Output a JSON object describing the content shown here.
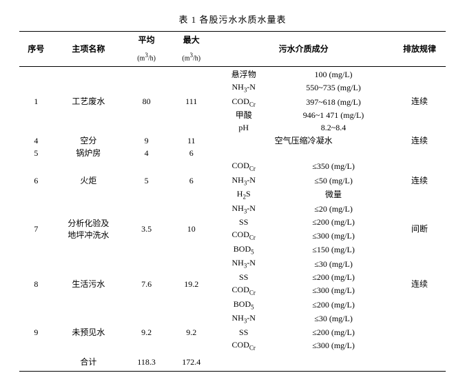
{
  "title": "表 1  各股污水水质水量表",
  "columns": {
    "seq": "序号",
    "name": "主项名称",
    "avg": "平均",
    "avg_unit": "(m³/h)",
    "max": "最大",
    "max_unit": "(m³/h)",
    "component": "污水介质成分",
    "rule": "排放规律"
  },
  "rows": [
    {
      "seq": "1",
      "name": "工艺废水",
      "avg": "80",
      "max": "111",
      "rule": "连续",
      "sub": [
        {
          "p": "悬浮物",
          "v": "100 (mg/L)"
        },
        {
          "p": "NH₃-N",
          "v": "550~735 (mg/L)"
        },
        {
          "p": "CODCr",
          "v": "397~618 (mg/L)"
        },
        {
          "p": "甲酸",
          "v": "946~1 471 (mg/L)"
        },
        {
          "p": "pH",
          "v": "8.2~8.4"
        }
      ]
    },
    {
      "seq": "4",
      "name": "空分",
      "avg": "9",
      "max": "11",
      "rule": "连续",
      "sub": [
        {
          "p": "",
          "v": "空气压缩冷凝水"
        }
      ]
    },
    {
      "seq": "5",
      "name": "锅炉房",
      "avg": "4",
      "max": "6",
      "rule": "",
      "sub": [
        {
          "p": "",
          "v": ""
        }
      ]
    },
    {
      "seq": "6",
      "name": "火炬",
      "avg": "5",
      "max": "6",
      "rule": "连续",
      "sub": [
        {
          "p": "CODCr",
          "v": "≤350 (mg/L)"
        },
        {
          "p": "NH₃-N",
          "v": "≤50 (mg/L)"
        },
        {
          "p": "H₂S",
          "v": "微量"
        }
      ]
    },
    {
      "seq": "7",
      "name": "分析化验及\n地坪冲洗水",
      "avg": "3.5",
      "max": "10",
      "rule": "间断",
      "sub": [
        {
          "p": "NH₃-N",
          "v": "≤20 (mg/L)"
        },
        {
          "p": "SS",
          "v": "≤200 (mg/L)"
        },
        {
          "p": "CODCr",
          "v": "≤300 (mg/L)"
        },
        {
          "p": "BOD₅",
          "v": "≤150 (mg/L)"
        }
      ]
    },
    {
      "seq": "8",
      "name": "生活污水",
      "avg": "7.6",
      "max": "19.2",
      "rule": "连续",
      "sub": [
        {
          "p": "NH₃-N",
          "v": "≤30 (mg/L)"
        },
        {
          "p": "SS",
          "v": "≤200 (mg/L)"
        },
        {
          "p": "CODCr",
          "v": "≤300 (mg/L)"
        },
        {
          "p": "BOD₅",
          "v": "≤200 (mg/L)"
        }
      ]
    },
    {
      "seq": "9",
      "name": "未预见水",
      "avg": "9.2",
      "max": "9.2",
      "rule": "",
      "sub": [
        {
          "p": "NH₃-N",
          "v": "≤30 (mg/L)"
        },
        {
          "p": "SS",
          "v": "≤200 (mg/L)"
        },
        {
          "p": "CODCr",
          "v": "≤300 (mg/L)"
        }
      ]
    }
  ],
  "total": {
    "label": "合计",
    "avg": "118.3",
    "max": "172.4"
  }
}
